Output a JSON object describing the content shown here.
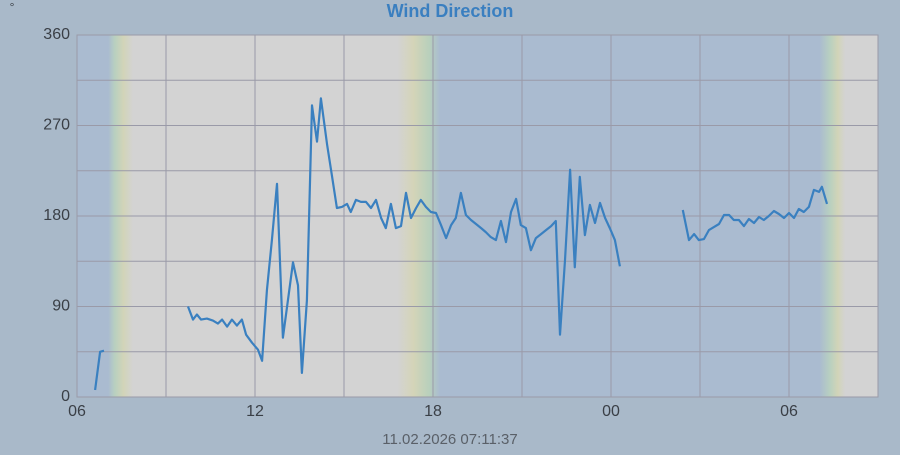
{
  "chart_data": {
    "type": "line",
    "title": "Wind Direction",
    "y_unit": "°",
    "footer": "11.02.2026 07:11:37",
    "x": [
      6.61,
      6.78,
      6.91,
      null,
      9.74,
      9.91,
      10.04,
      10.18,
      10.38,
      10.58,
      10.75,
      10.89,
      11.06,
      11.22,
      11.39,
      11.56,
      11.7,
      11.9,
      12.1,
      12.24,
      12.4,
      12.57,
      12.74,
      12.94,
      13.11,
      13.28,
      13.45,
      13.58,
      13.75,
      13.92,
      14.09,
      14.22,
      14.43,
      14.59,
      14.76,
      14.93,
      15.1,
      15.23,
      15.4,
      15.57,
      15.74,
      15.91,
      16.08,
      16.25,
      16.41,
      16.58,
      16.75,
      16.92,
      17.09,
      17.26,
      17.43,
      17.59,
      17.76,
      17.93,
      18.1,
      18.27,
      18.44,
      18.61,
      18.77,
      18.94,
      19.11,
      19.28,
      19.45,
      19.62,
      19.78,
      19.95,
      20.12,
      20.29,
      20.46,
      20.63,
      20.8,
      20.96,
      21.13,
      21.3,
      21.47,
      21.64,
      21.81,
      21.98,
      22.14,
      22.28,
      22.45,
      22.62,
      22.78,
      22.95,
      23.12,
      23.29,
      23.46,
      23.63,
      23.8,
      23.96,
      24.13,
      24.3,
      null,
      26.42,
      26.63,
      26.8,
      26.96,
      27.13,
      27.3,
      27.47,
      27.64,
      27.81,
      27.98,
      28.14,
      28.31,
      28.48,
      28.65,
      28.82,
      28.99,
      29.15,
      29.32,
      29.49,
      29.66,
      29.83,
      30.0,
      30.17,
      30.33,
      30.5,
      30.67,
      30.84,
      31.01,
      31.11,
      31.28
    ],
    "series": [
      {
        "color": "#3a80c0",
        "values": [
          7,
          45,
          46,
          null,
          90,
          77,
          82,
          77,
          78,
          76,
          73,
          77,
          70,
          77,
          71,
          77,
          62,
          54,
          47,
          36,
          106,
          156,
          212,
          59,
          96,
          134,
          111,
          24,
          96,
          290,
          254,
          297,
          251,
          221,
          188,
          189,
          192,
          184,
          196,
          194,
          194,
          188,
          196,
          178,
          168,
          192,
          168,
          170,
          203,
          178,
          188,
          196,
          189,
          184,
          183,
          171,
          158,
          171,
          178,
          203,
          181,
          176,
          172,
          168,
          164,
          159,
          156,
          175,
          154,
          184,
          197,
          171,
          168,
          146,
          158,
          162,
          166,
          170,
          175,
          62,
          136,
          226,
          129,
          219,
          161,
          191,
          173,
          193,
          178,
          168,
          156,
          130,
          null,
          186,
          156,
          162,
          156,
          157,
          166,
          169,
          172,
          181,
          181,
          176,
          176,
          170,
          177,
          173,
          179,
          176,
          180,
          185,
          182,
          178,
          183,
          178,
          187,
          184,
          189,
          206,
          204,
          209,
          192
        ]
      }
    ],
    "xlim": [
      6,
      33
    ],
    "xticks": [
      {
        "value": 6,
        "label": "06"
      },
      12,
      18,
      {
        "value": 24,
        "label": "00"
      },
      {
        "value": 30,
        "label": "06"
      }
    ],
    "x_minor_ticks": [
      9,
      15,
      21,
      27
    ],
    "ylim": [
      0,
      360
    ],
    "yticks": [
      0,
      90,
      180,
      270,
      360
    ],
    "y_minor_ticks": [
      45,
      135,
      225,
      315
    ],
    "grid": true
  }
}
